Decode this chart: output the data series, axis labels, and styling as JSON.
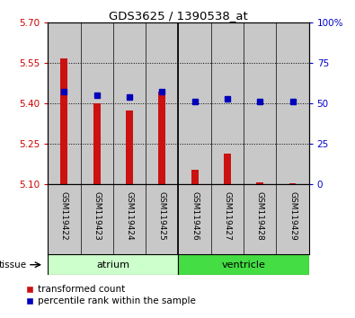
{
  "title": "GDS3625 / 1390538_at",
  "samples": [
    "GSM119422",
    "GSM119423",
    "GSM119424",
    "GSM119425",
    "GSM119426",
    "GSM119427",
    "GSM119428",
    "GSM119429"
  ],
  "red_values": [
    5.565,
    5.4,
    5.375,
    5.445,
    5.155,
    5.215,
    5.108,
    5.103
  ],
  "blue_values": [
    57,
    55,
    54,
    57,
    51,
    53,
    51,
    51
  ],
  "ylim_left": [
    5.1,
    5.7
  ],
  "ylim_right": [
    0,
    100
  ],
  "yticks_left": [
    5.1,
    5.25,
    5.4,
    5.55,
    5.7
  ],
  "yticks_right": [
    0,
    25,
    50,
    75,
    100
  ],
  "ytick_labels_right": [
    "0",
    "25",
    "50",
    "75",
    "100%"
  ],
  "base_value": 5.1,
  "bar_color": "#CC1111",
  "dot_color": "#0000BB",
  "col_bg_color": "#C8C8C8",
  "plot_bg_color": "#FFFFFF",
  "left_axis_color": "#CC0000",
  "right_axis_color": "#0000CC",
  "atrium_color": "#CCFFCC",
  "ventricle_color": "#44DD44",
  "grid_yticks": [
    5.25,
    5.4,
    5.55
  ],
  "n_atrium": 4,
  "n_ventricle": 4
}
